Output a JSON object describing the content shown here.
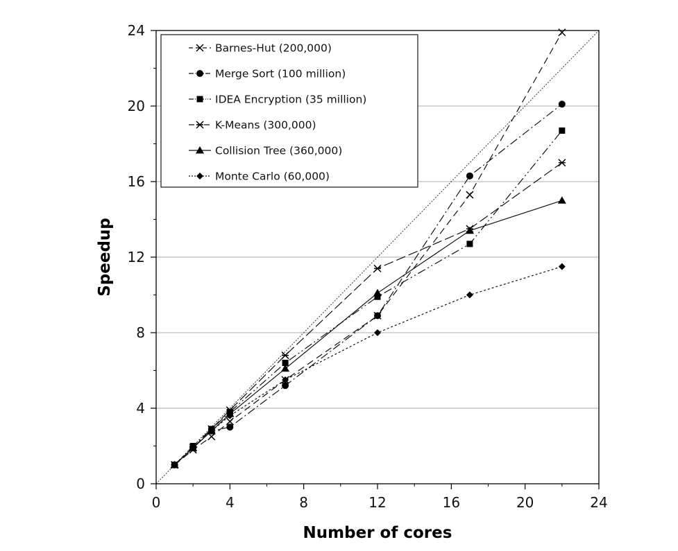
{
  "chart_data": {
    "type": "line",
    "title": "",
    "xlabel": "Number of cores",
    "ylabel": "Speedup",
    "xlim": [
      0,
      24
    ],
    "ylim": [
      0,
      24
    ],
    "xticks": [
      0,
      4,
      8,
      12,
      16,
      20,
      24
    ],
    "yticks": [
      0,
      4,
      8,
      12,
      16,
      20,
      24
    ],
    "grid": "horizontal",
    "legend_position": "top-left",
    "ideal_line": {
      "x": [
        0,
        24
      ],
      "y": [
        0,
        24
      ]
    },
    "series": [
      {
        "name": "Barnes-Hut (200,000)",
        "marker": "x",
        "dash": "10,6",
        "x": [
          1,
          2,
          3,
          4,
          7,
          12,
          17,
          22
        ],
        "y": [
          1,
          1.8,
          2.5,
          3.3,
          5.5,
          8.9,
          15.3,
          23.9
        ]
      },
      {
        "name": "Merge Sort (100 million)",
        "marker": "circle",
        "dash": "12,4,2,4",
        "x": [
          1,
          2,
          3,
          4,
          7,
          12,
          17,
          22
        ],
        "y": [
          1,
          1.9,
          2.8,
          3.0,
          5.2,
          8.9,
          16.3,
          20.1
        ]
      },
      {
        "name": "IDEA Encryption (35 million)",
        "marker": "square",
        "dash": "12,4,2,4,2,4",
        "x": [
          1,
          2,
          3,
          4,
          7,
          12,
          17,
          22
        ],
        "y": [
          1,
          2.0,
          2.9,
          3.8,
          6.4,
          9.9,
          12.7,
          18.7
        ]
      },
      {
        "name": "K-Means (300,000)",
        "marker": "asterisk",
        "dash": "14,5",
        "x": [
          1,
          2,
          3,
          4,
          7,
          12,
          17,
          22
        ],
        "y": [
          1,
          1.9,
          2.9,
          3.9,
          6.8,
          11.4,
          13.5,
          17.0
        ]
      },
      {
        "name": "Collision Tree (360,000)",
        "marker": "triangle",
        "dash": "",
        "x": [
          1,
          2,
          3,
          4,
          7,
          12,
          17,
          22
        ],
        "y": [
          1,
          1.9,
          2.8,
          3.7,
          6.1,
          10.1,
          13.4,
          15.0
        ]
      },
      {
        "name": "Monte Carlo (60,000)",
        "marker": "diamond",
        "dash": "3,3",
        "x": [
          1,
          2,
          3,
          4,
          7,
          12,
          17,
          22
        ],
        "y": [
          1,
          1.9,
          2.8,
          3.6,
          5.5,
          8.0,
          10.0,
          11.5
        ]
      }
    ]
  }
}
